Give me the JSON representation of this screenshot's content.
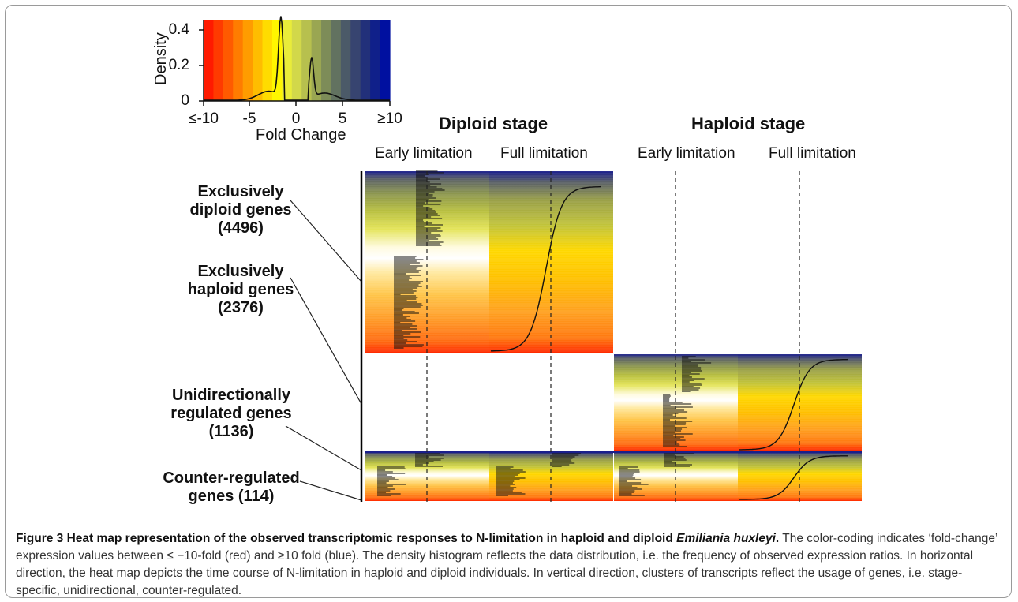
{
  "density_panel": {
    "ylabel": "Density",
    "xlabel": "Fold Change",
    "y_ticks": [
      "0",
      "0.2",
      "0.4"
    ],
    "x_ticks": [
      "≤-10",
      "-5",
      "0",
      "5",
      "≥10"
    ],
    "scale_colors": [
      "#ff1a00",
      "#ff3a00",
      "#ff5a00",
      "#ff7c00",
      "#ff9c00",
      "#ffbd00",
      "#ffdc00",
      "#fff600",
      "#e9ec3a",
      "#d2d84a",
      "#b7c04e",
      "#9aa652",
      "#7d8c58",
      "#627260",
      "#4b5a68",
      "#374470",
      "#22307a",
      "#10208a",
      "#0010a0"
    ]
  },
  "stage_headers": {
    "diploid": "Diploid stage",
    "haploid": "Haploid stage"
  },
  "sub_headers": {
    "diploid_early": "Early limitation",
    "diploid_full": "Full limitation",
    "haploid_early": "Early limitation",
    "haploid_full": "Full limitation"
  },
  "clusters": [
    {
      "label_line1": "Exclusively",
      "label_line2": "diploid genes",
      "count": "(4496)"
    },
    {
      "label_line1": "Exclusively",
      "label_line2": "haploid genes",
      "count": "(2376)"
    },
    {
      "label_line1": "Unidirectionally",
      "label_line2": "regulated genes",
      "count": "(1136)"
    },
    {
      "label_line1": "Counter-regulated",
      "label_line2": "genes (114)",
      "count": ""
    }
  ],
  "caption": {
    "title_prefix": "Figure 3 Heat map representation of the observed transcriptomic responses to N-limitation in haploid and diploid ",
    "title_italic": "Emiliania huxleyi",
    "title_suffix": ".",
    "body": "The color-coding indicates ‘fold-change’ expression values between ≤ −10-fold (red) and ≥10 fold (blue). The density histogram reflects the data distribution, i.e. the frequency of observed expression ratios. In horizontal direction, the heat map depicts the time course of N-limitation in haploid and diploid individuals. In vertical direction, clusters of transcripts reflect the usage of genes, i.e. stage-specific, unidirectional, counter-regulated."
  }
}
